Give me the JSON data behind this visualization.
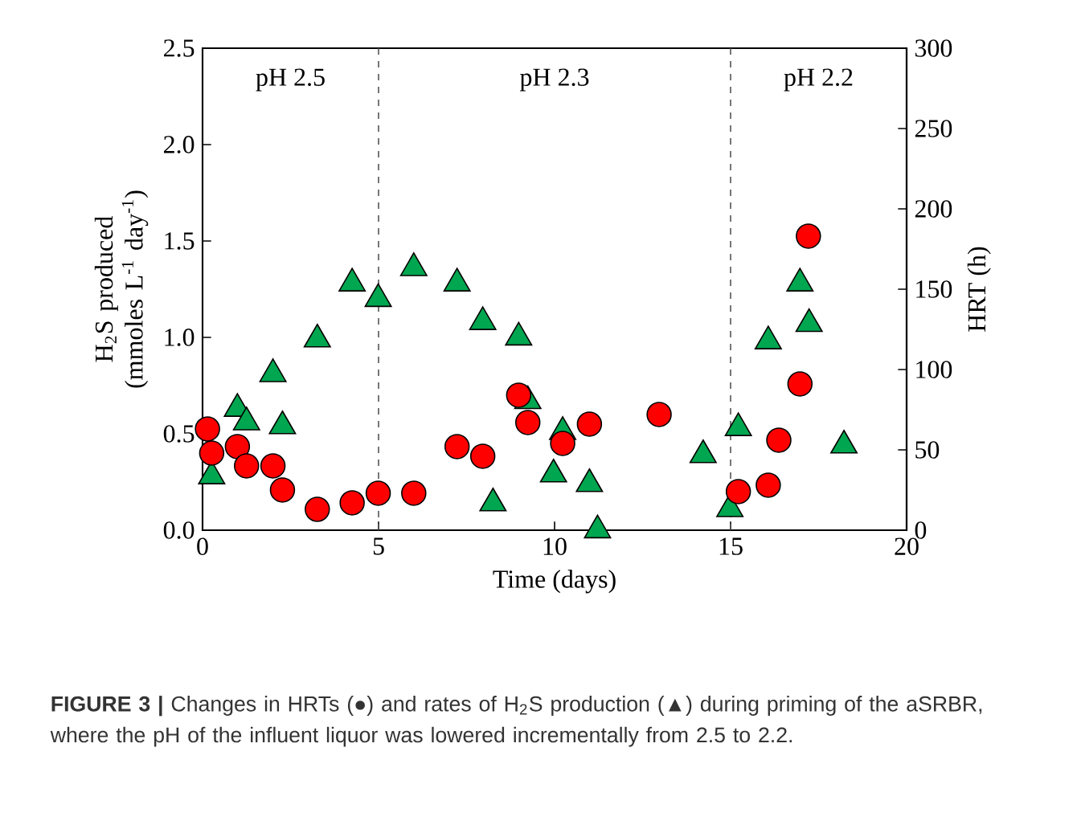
{
  "chart_data": {
    "type": "scatter",
    "xlabel": "Time (days)",
    "ylabel": "H$_{2}$S produced (mmoles L$^{-1}$ day$^{-1}$)",
    "y2label": "HRT (h)",
    "xlim": [
      0,
      20
    ],
    "xticks": [
      0,
      5,
      10,
      15,
      20
    ],
    "ylim": [
      0,
      2.5
    ],
    "yticks": [
      {
        "value": 0,
        "label": "0.0"
      },
      0.5,
      {
        "value": 1,
        "label": "1.0"
      },
      1.5,
      {
        "value": 2,
        "label": "2.0"
      },
      2.5
    ],
    "y2lim": [
      0,
      300
    ],
    "y2ticks": [
      0,
      50,
      100,
      150,
      200,
      250,
      300
    ],
    "grid": false,
    "ref_lines": [
      {
        "axis": "x",
        "value": 5,
        "color": "#555555",
        "line_style": "dashed"
      },
      {
        "axis": "x",
        "value": 15,
        "color": "#555555",
        "line_style": "dashed"
      }
    ],
    "annotations": [
      "pH 2.5",
      "pH 2.3",
      "pH 2.2",
      "**FIGURE 3 |** Changes in HRTs (●) and rates of H$_{2}$S production (▲) during priming of the aSRBR, where the pH of the influent liquor was lowered incrementally from 2.5 to 2.2."
    ],
    "series": [
      {
        "marker": "triangle",
        "color": "#00a650",
        "x": [
          0.26,
          0.99,
          1.25,
          2.0,
          2.27,
          3.26,
          4.25,
          4.99,
          6.0,
          7.23,
          7.96,
          8.98,
          9.24,
          8.25,
          9.97,
          10.23,
          10.99,
          11.22,
          14.22,
          14.98,
          15.22,
          16.07,
          16.97,
          17.23,
          18.22
        ],
        "values": [
          0.28,
          0.63,
          0.56,
          0.81,
          0.54,
          0.99,
          1.28,
          1.2,
          1.36,
          1.28,
          1.08,
          1.0,
          0.67,
          0.14,
          0.29,
          0.51,
          0.24,
          0.0,
          0.39,
          0.11,
          0.53,
          0.98,
          1.28,
          1.07,
          0.44
        ]
      },
      {
        "marker": "circle",
        "axis": "y2",
        "color": "#ff0000",
        "x": [
          0.14,
          0.26,
          0.99,
          1.25,
          2.0,
          2.27,
          3.26,
          4.25,
          4.99,
          6.0,
          7.23,
          7.96,
          8.98,
          9.24,
          10.23,
          10.99,
          12.97,
          15.22,
          16.07,
          16.37,
          16.97,
          17.21
        ],
        "values": [
          63,
          48,
          52,
          40,
          40,
          25,
          13,
          17,
          23,
          23,
          52,
          46,
          84,
          67,
          54,
          66,
          72,
          24,
          28,
          56,
          91,
          183
        ]
      }
    ]
  }
}
